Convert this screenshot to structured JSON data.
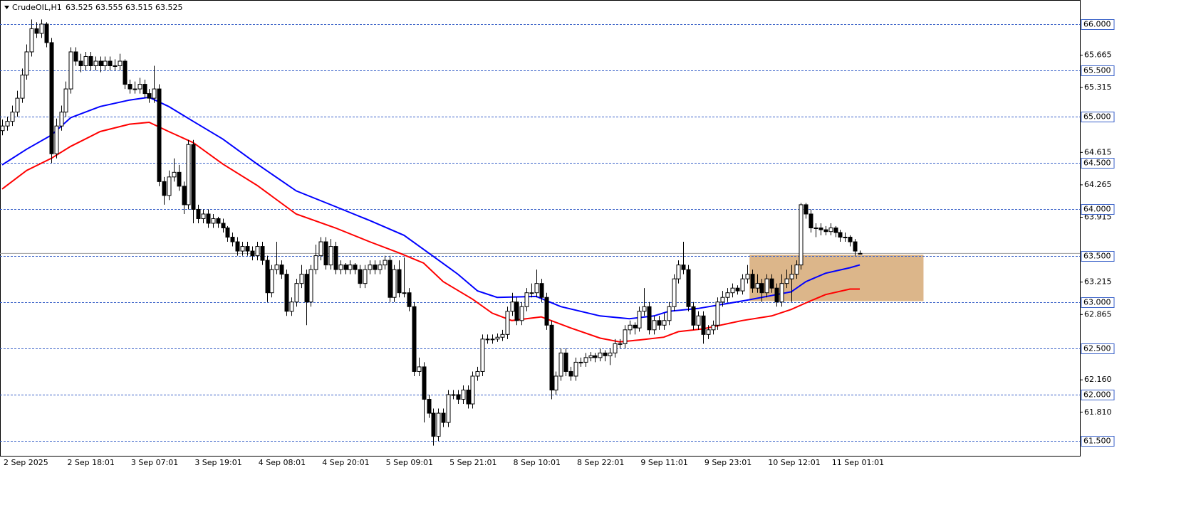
{
  "chart_data": {
    "type": "candlestick",
    "title": "CrudeOIL,H1",
    "quote": "63.525 63.555 63.515 63.525",
    "ylim": [
      61.34,
      66.26
    ],
    "up_color": "#ffffff",
    "down_color": "#000000",
    "wick_color": "#000000",
    "yticks": [
      65.665,
      65.315,
      64.615,
      64.265,
      63.915,
      63.215,
      62.865,
      {
        "value": 62.16,
        "label": "62.160"
      },
      {
        "value": 61.81,
        "label": "61.810"
      }
    ],
    "levels": [
      {
        "value": 66,
        "label": "66.000"
      },
      {
        "value": 65.5,
        "label": "65.500"
      },
      {
        "value": 65,
        "label": "65.000"
      },
      {
        "value": 64.5,
        "label": "64.500"
      },
      {
        "value": 64,
        "label": "64.000"
      },
      {
        "value": 63.5,
        "label": "63.500"
      },
      {
        "value": 63,
        "label": "63.000"
      },
      {
        "value": 62.5,
        "label": "62.500"
      },
      {
        "value": 62,
        "label": "62.000"
      },
      {
        "value": 61.5,
        "label": "61.500"
      }
    ],
    "level_color": "#3a62c8",
    "zone": {
      "x": [
        152.5,
        188
      ],
      "y": [
        63.01,
        63.51
      ],
      "color": "#dcb68a"
    },
    "categories": [
      "2 Sep 2025",
      null,
      null,
      null,
      null,
      null,
      null,
      null,
      null,
      null,
      null,
      null,
      null,
      "2 Sep 18:01",
      null,
      null,
      null,
      null,
      null,
      null,
      null,
      null,
      null,
      null,
      null,
      null,
      "3 Sep 07:01",
      null,
      null,
      null,
      null,
      null,
      null,
      null,
      null,
      null,
      null,
      null,
      null,
      "3 Sep 19:01",
      null,
      null,
      null,
      null,
      null,
      null,
      null,
      null,
      null,
      null,
      null,
      null,
      "4 Sep 08:01",
      null,
      null,
      null,
      null,
      null,
      null,
      null,
      null,
      null,
      null,
      null,
      null,
      "4 Sep 20:01",
      null,
      null,
      null,
      null,
      null,
      null,
      null,
      null,
      null,
      null,
      null,
      null,
      "5 Sep 09:01",
      null,
      null,
      null,
      null,
      null,
      null,
      null,
      null,
      null,
      null,
      null,
      null,
      "5 Sep 21:01",
      null,
      null,
      null,
      null,
      null,
      null,
      null,
      null,
      null,
      null,
      null,
      null,
      "8 Sep 10:01",
      null,
      null,
      null,
      null,
      null,
      null,
      null,
      null,
      null,
      null,
      null,
      null,
      "8 Sep 22:01",
      null,
      null,
      null,
      null,
      null,
      null,
      null,
      null,
      null,
      null,
      null,
      null,
      "9 Sep 11:01",
      null,
      null,
      null,
      null,
      null,
      null,
      null,
      null,
      null,
      null,
      null,
      null,
      "9 Sep 23:01",
      null,
      null,
      null,
      null,
      null,
      null,
      null,
      null,
      null,
      null,
      null,
      null,
      "10 Sep 12:01",
      null,
      null,
      null,
      null,
      null,
      null,
      null,
      null,
      null,
      null,
      null,
      null,
      "11 Sep 01:01",
      null,
      null,
      null,
      null,
      null,
      null
    ],
    "ohlc": [
      [
        64.85,
        64.97,
        64.8,
        64.9
      ],
      [
        64.9,
        65.0,
        64.85,
        64.95
      ],
      [
        64.95,
        65.12,
        64.9,
        65.05
      ],
      [
        65.05,
        65.28,
        65.0,
        65.2
      ],
      [
        65.2,
        65.52,
        65.15,
        65.45
      ],
      [
        65.45,
        65.78,
        65.4,
        65.7
      ],
      [
        65.7,
        66.05,
        65.65,
        65.95
      ],
      [
        65.95,
        66.02,
        65.85,
        65.9
      ],
      [
        65.9,
        66.05,
        65.85,
        66.0
      ],
      [
        66.0,
        66.02,
        65.75,
        65.8
      ],
      [
        65.8,
        65.85,
        64.5,
        64.6
      ],
      [
        64.6,
        64.98,
        64.55,
        64.9
      ],
      [
        64.9,
        65.12,
        64.85,
        65.05
      ],
      [
        65.05,
        65.38,
        65.0,
        65.3
      ],
      [
        65.3,
        65.75,
        65.25,
        65.7
      ],
      [
        65.7,
        65.75,
        65.55,
        65.6
      ],
      [
        65.6,
        65.68,
        65.48,
        65.55
      ],
      [
        65.55,
        65.7,
        65.5,
        65.65
      ],
      [
        65.65,
        65.7,
        65.5,
        65.55
      ],
      [
        65.55,
        65.65,
        65.5,
        65.6
      ],
      [
        65.6,
        65.65,
        65.48,
        65.55
      ],
      [
        65.55,
        65.65,
        65.5,
        65.6
      ],
      [
        65.6,
        65.65,
        65.5,
        65.55
      ],
      [
        65.55,
        65.62,
        65.5,
        65.55
      ],
      [
        65.55,
        65.68,
        65.5,
        65.6
      ],
      [
        65.6,
        65.62,
        65.3,
        65.35
      ],
      [
        65.35,
        65.4,
        65.25,
        65.3
      ],
      [
        65.3,
        65.38,
        65.25,
        65.3
      ],
      [
        65.3,
        65.42,
        65.25,
        65.35
      ],
      [
        65.35,
        65.4,
        65.2,
        65.25
      ],
      [
        65.25,
        65.3,
        65.15,
        65.2
      ],
      [
        65.2,
        65.55,
        65.15,
        65.3
      ],
      [
        65.3,
        65.35,
        64.25,
        64.3
      ],
      [
        64.3,
        64.35,
        64.05,
        64.15
      ],
      [
        64.15,
        64.42,
        64.1,
        64.35
      ],
      [
        64.35,
        64.55,
        64.3,
        64.4
      ],
      [
        64.4,
        64.48,
        64.2,
        64.25
      ],
      [
        64.25,
        64.3,
        63.95,
        64.05
      ],
      [
        64.05,
        64.75,
        64.0,
        64.7
      ],
      [
        64.7,
        64.75,
        63.85,
        64.0
      ],
      [
        64.0,
        64.05,
        63.85,
        63.9
      ],
      [
        63.9,
        64.0,
        63.85,
        63.95
      ],
      [
        63.95,
        64.0,
        63.8,
        63.85
      ],
      [
        63.85,
        63.95,
        63.8,
        63.9
      ],
      [
        63.9,
        63.92,
        63.8,
        63.85
      ],
      [
        63.85,
        63.9,
        63.75,
        63.8
      ],
      [
        63.8,
        63.82,
        63.65,
        63.7
      ],
      [
        63.7,
        63.75,
        63.6,
        63.65
      ],
      [
        63.65,
        63.7,
        63.5,
        63.55
      ],
      [
        63.55,
        63.65,
        63.5,
        63.6
      ],
      [
        63.6,
        63.65,
        63.5,
        63.55
      ],
      [
        63.55,
        63.6,
        63.45,
        63.5
      ],
      [
        63.5,
        63.65,
        63.45,
        63.6
      ],
      [
        63.6,
        63.65,
        63.4,
        63.45
      ],
      [
        63.45,
        63.5,
        63.0,
        63.1
      ],
      [
        63.1,
        63.4,
        63.05,
        63.35
      ],
      [
        63.35,
        63.65,
        63.3,
        63.4
      ],
      [
        63.4,
        63.45,
        63.25,
        63.3
      ],
      [
        63.3,
        63.35,
        62.85,
        62.9
      ],
      [
        62.9,
        63.05,
        62.85,
        63.0
      ],
      [
        63.0,
        63.25,
        62.95,
        63.2
      ],
      [
        63.2,
        63.4,
        63.15,
        63.3
      ],
      [
        63.3,
        63.35,
        62.75,
        63.0
      ],
      [
        63.0,
        63.4,
        62.95,
        63.35
      ],
      [
        63.35,
        63.62,
        63.3,
        63.5
      ],
      [
        63.5,
        63.7,
        63.45,
        63.65
      ],
      [
        63.65,
        63.7,
        63.35,
        63.4
      ],
      [
        63.4,
        63.68,
        63.35,
        63.6
      ],
      [
        63.6,
        63.65,
        63.3,
        63.35
      ],
      [
        63.35,
        63.45,
        63.3,
        63.4
      ],
      [
        63.4,
        63.42,
        63.3,
        63.35
      ],
      [
        63.35,
        63.45,
        63.3,
        63.4
      ],
      [
        63.4,
        63.42,
        63.3,
        63.35
      ],
      [
        63.35,
        63.4,
        63.15,
        63.2
      ],
      [
        63.2,
        63.4,
        63.15,
        63.35
      ],
      [
        63.35,
        63.45,
        63.3,
        63.4
      ],
      [
        63.4,
        63.45,
        63.3,
        63.35
      ],
      [
        63.35,
        63.45,
        63.3,
        63.4
      ],
      [
        63.4,
        63.5,
        63.35,
        63.45
      ],
      [
        63.45,
        63.5,
        63.0,
        63.05
      ],
      [
        63.05,
        63.4,
        63.0,
        63.35
      ],
      [
        63.35,
        63.45,
        63.05,
        63.1
      ],
      [
        63.1,
        63.48,
        63.05,
        63.1
      ],
      [
        63.1,
        63.15,
        62.9,
        62.95
      ],
      [
        62.95,
        63.0,
        62.2,
        62.25
      ],
      [
        62.25,
        62.4,
        62.2,
        62.3
      ],
      [
        62.3,
        62.35,
        61.7,
        61.95
      ],
      [
        61.95,
        62.0,
        61.75,
        61.8
      ],
      [
        61.8,
        61.85,
        61.45,
        61.55
      ],
      [
        61.55,
        61.85,
        61.5,
        61.8
      ],
      [
        61.8,
        61.85,
        61.65,
        61.7
      ],
      [
        61.7,
        62.05,
        61.65,
        62.0
      ],
      [
        62.0,
        62.05,
        61.95,
        62.0
      ],
      [
        62.0,
        62.05,
        61.9,
        61.95
      ],
      [
        61.95,
        62.1,
        61.9,
        62.05
      ],
      [
        62.05,
        62.1,
        61.85,
        61.9
      ],
      [
        61.9,
        62.25,
        61.85,
        62.2
      ],
      [
        62.2,
        62.3,
        62.15,
        62.25
      ],
      [
        62.25,
        62.65,
        62.2,
        62.6
      ],
      [
        62.6,
        62.65,
        62.55,
        62.6
      ],
      [
        62.6,
        62.65,
        62.55,
        62.6
      ],
      [
        62.6,
        62.66,
        62.57,
        62.62
      ],
      [
        62.62,
        62.7,
        62.58,
        62.65
      ],
      [
        62.65,
        62.95,
        62.6,
        62.9
      ],
      [
        62.9,
        63.1,
        62.85,
        63.0
      ],
      [
        63.0,
        63.05,
        62.75,
        62.8
      ],
      [
        62.8,
        63.0,
        62.75,
        62.95
      ],
      [
        62.95,
        63.15,
        62.9,
        63.1
      ],
      [
        63.1,
        63.2,
        63.05,
        63.1
      ],
      [
        63.1,
        63.35,
        63.05,
        63.2
      ],
      [
        63.2,
        63.25,
        63.0,
        63.05
      ],
      [
        63.05,
        63.1,
        62.7,
        62.75
      ],
      [
        62.75,
        62.8,
        61.95,
        62.05
      ],
      [
        62.05,
        62.25,
        62.0,
        62.2
      ],
      [
        62.2,
        62.5,
        62.15,
        62.45
      ],
      [
        62.45,
        62.5,
        62.2,
        62.25
      ],
      [
        62.25,
        62.3,
        62.15,
        62.2
      ],
      [
        62.2,
        62.4,
        62.15,
        62.35
      ],
      [
        62.35,
        62.4,
        62.3,
        62.35
      ],
      [
        62.35,
        62.45,
        62.3,
        62.4
      ],
      [
        62.4,
        62.46,
        62.36,
        62.42
      ],
      [
        62.42,
        62.45,
        62.35,
        62.4
      ],
      [
        62.4,
        62.5,
        62.36,
        62.45
      ],
      [
        62.45,
        62.48,
        62.36,
        62.42
      ],
      [
        62.42,
        62.5,
        62.32,
        62.45
      ],
      [
        62.45,
        62.6,
        62.4,
        62.55
      ],
      [
        62.55,
        62.6,
        62.5,
        62.55
      ],
      [
        62.55,
        62.75,
        62.5,
        62.7
      ],
      [
        62.7,
        62.8,
        62.65,
        62.75
      ],
      [
        62.75,
        62.78,
        62.65,
        62.72
      ],
      [
        62.72,
        62.95,
        62.68,
        62.9
      ],
      [
        62.9,
        63.15,
        62.85,
        62.95
      ],
      [
        62.95,
        63.0,
        62.65,
        62.7
      ],
      [
        62.7,
        62.85,
        62.65,
        62.8
      ],
      [
        62.8,
        62.85,
        62.7,
        62.75
      ],
      [
        62.75,
        62.88,
        62.7,
        62.8
      ],
      [
        62.8,
        63.0,
        62.75,
        62.95
      ],
      [
        62.95,
        63.3,
        62.9,
        63.25
      ],
      [
        63.25,
        63.45,
        63.2,
        63.4
      ],
      [
        63.4,
        63.65,
        63.3,
        63.35
      ],
      [
        63.35,
        63.4,
        62.9,
        62.95
      ],
      [
        62.95,
        63.0,
        62.7,
        62.75
      ],
      [
        62.75,
        62.9,
        62.7,
        62.85
      ],
      [
        62.85,
        62.9,
        62.55,
        62.65
      ],
      [
        62.65,
        62.75,
        62.6,
        62.7
      ],
      [
        62.7,
        62.8,
        62.65,
        62.75
      ],
      [
        62.75,
        63.05,
        62.7,
        63.0
      ],
      [
        63.0,
        63.12,
        62.95,
        63.05
      ],
      [
        63.05,
        63.15,
        63.0,
        63.1
      ],
      [
        63.1,
        63.2,
        63.05,
        63.15
      ],
      [
        63.15,
        63.18,
        63.08,
        63.12
      ],
      [
        63.12,
        63.3,
        63.08,
        63.25
      ],
      [
        63.25,
        63.4,
        63.2,
        63.3
      ],
      [
        63.3,
        63.35,
        63.1,
        63.15
      ],
      [
        63.15,
        63.3,
        63.1,
        63.2
      ],
      [
        63.2,
        63.25,
        63.0,
        63.1
      ],
      [
        63.1,
        63.3,
        63.05,
        63.25
      ],
      [
        63.25,
        63.3,
        63.1,
        63.15
      ],
      [
        63.15,
        63.2,
        62.95,
        63.0
      ],
      [
        63.0,
        63.3,
        62.95,
        63.2
      ],
      [
        63.2,
        63.35,
        63.15,
        63.25
      ],
      [
        63.25,
        63.4,
        63.0,
        63.3
      ],
      [
        63.3,
        63.45,
        63.25,
        63.4
      ],
      [
        63.4,
        64.07,
        63.35,
        64.05
      ],
      [
        64.05,
        64.07,
        63.9,
        63.95
      ],
      [
        63.95,
        64.0,
        63.75,
        63.8
      ],
      [
        63.8,
        63.85,
        63.7,
        63.8
      ],
      [
        63.8,
        63.85,
        63.72,
        63.78
      ],
      [
        63.78,
        63.82,
        63.72,
        63.76
      ],
      [
        63.76,
        63.85,
        63.72,
        63.8
      ],
      [
        63.8,
        63.82,
        63.7,
        63.75
      ],
      [
        63.75,
        63.78,
        63.65,
        63.7
      ],
      [
        63.7,
        63.75,
        63.65,
        63.7
      ],
      [
        63.7,
        63.72,
        63.6,
        63.65
      ],
      [
        63.65,
        63.68,
        63.5,
        63.55
      ],
      [
        63.525,
        63.555,
        63.515,
        63.525
      ]
    ],
    "moving_averages": [
      {
        "color": "#0000ff",
        "x": [
          0,
          5,
          10,
          14,
          20,
          26,
          30,
          34,
          39,
          45,
          52,
          60,
          68,
          75,
          82,
          87,
          93,
          97,
          101,
          109,
          114,
          122,
          128,
          133,
          136,
          142,
          152,
          158,
          161,
          164,
          168,
          173,
          175
        ],
        "values": [
          64.48,
          64.65,
          64.8,
          64.99,
          65.11,
          65.18,
          65.21,
          65.11,
          64.95,
          64.76,
          64.49,
          64.2,
          64.03,
          63.88,
          63.72,
          63.53,
          63.3,
          63.12,
          63.05,
          63.06,
          62.95,
          62.85,
          62.82,
          62.85,
          62.9,
          62.93,
          63.02,
          63.08,
          63.11,
          63.22,
          63.31,
          63.37,
          63.4
        ]
      },
      {
        "color": "#ff0000",
        "x": [
          0,
          5,
          10,
          14,
          20,
          26,
          30,
          34,
          39,
          45,
          52,
          60,
          68,
          75,
          81,
          86,
          90,
          96,
          100,
          104,
          110,
          116,
          122,
          126,
          130,
          135,
          138,
          143,
          151,
          157,
          161,
          164,
          168,
          173,
          175
        ],
        "values": [
          64.22,
          64.42,
          64.55,
          64.68,
          64.84,
          64.92,
          64.94,
          64.84,
          64.72,
          64.49,
          64.26,
          63.95,
          63.8,
          63.65,
          63.53,
          63.42,
          63.22,
          63.03,
          62.88,
          62.8,
          62.84,
          62.72,
          62.61,
          62.57,
          62.59,
          62.62,
          62.68,
          62.71,
          62.8,
          62.85,
          62.92,
          62.99,
          63.08,
          63.14,
          63.14
        ]
      }
    ]
  }
}
